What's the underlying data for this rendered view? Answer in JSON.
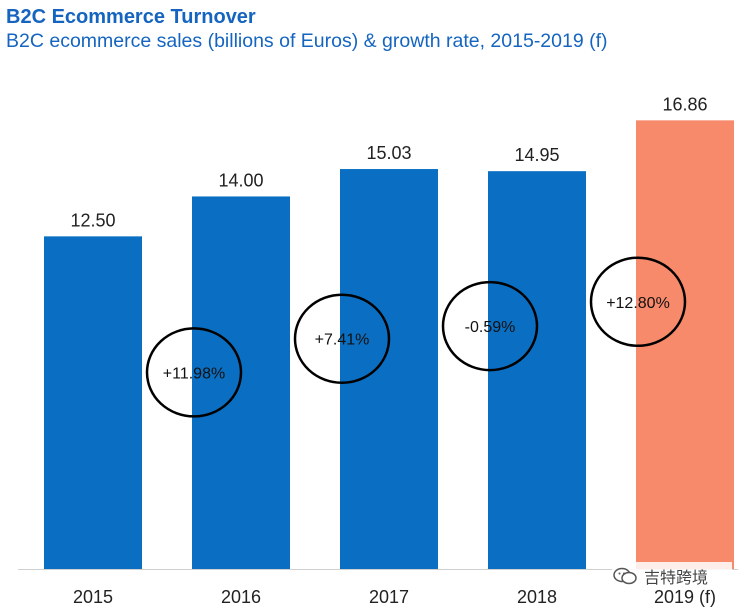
{
  "chart_data": {
    "type": "bar",
    "title": "B2C Ecommerce Turnover",
    "subtitle": "B2C ecommerce sales (billions of Euros) & growth rate, 2015-2019 (f)",
    "categories": [
      "2015",
      "2016",
      "2017",
      "2018",
      "2019 (f)"
    ],
    "values": [
      12.5,
      14.0,
      15.03,
      14.95,
      16.86
    ],
    "value_labels": [
      "12.50",
      "14.00",
      "15.03",
      "14.95",
      "16.86"
    ],
    "growth_rates": [
      "+11.98%",
      "+7.41%",
      "-0.59%",
      "+12.80%"
    ],
    "bar_colors": [
      "#0a6fc2",
      "#0a6fc2",
      "#0a6fc2",
      "#0a6fc2",
      "#f88a6c"
    ],
    "ylim": [
      0,
      18
    ],
    "xlabel": "",
    "ylabel": ""
  },
  "watermark": {
    "text": "吉特跨境",
    "icon": "wechat-icon"
  }
}
